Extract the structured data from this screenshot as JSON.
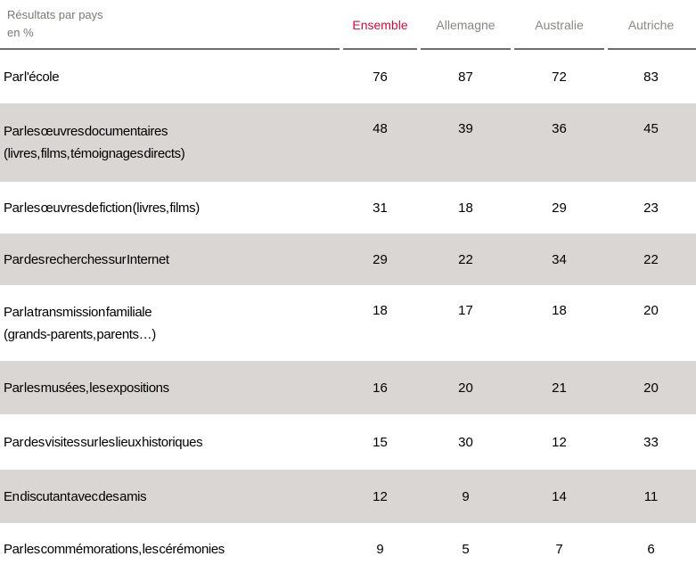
{
  "title": {
    "line1": "Résultats par pays",
    "line2": "en %"
  },
  "table": {
    "rows": [
      {
        "label": "Par l'école"
      },
      {
        "label": "Par les œuvres documentaires",
        "sublabel": "(livres, films, témoignages  directs)"
      },
      {
        "label": "Par les œuvres de fiction (livres, films)"
      },
      {
        "label": "Par des recherches sur Internet"
      },
      {
        "label": "Par la transmission familiale",
        "sublabel": "(grands-parents, parents…)"
      },
      {
        "label": "Par les musées, les expositions"
      },
      {
        "label": "Par des visites sur les lieux historiques"
      },
      {
        "label": "En discutant avec des amis"
      },
      {
        "label": "Par les commémorations, les cérémonies"
      }
    ]
  },
  "chart_data": {
    "type": "table",
    "title": "Résultats par pays en %",
    "columns": [
      "Ensemble",
      "Allemagne",
      "Australie",
      "Autriche"
    ],
    "highlight_column": "Ensemble",
    "row_labels": [
      "Par l'école",
      "Par les œuvres documentaires (livres, films, témoignages directs)",
      "Par les œuvres de fiction (livres, films)",
      "Par des recherches sur Internet",
      "Par la transmission familiale (grands-parents, parents…)",
      "Par les musées, les expositions",
      "Par des visites sur les lieux historiques",
      "En discutant avec des amis",
      "Par les commémorations, les cérémonies"
    ],
    "values": [
      [
        76,
        87,
        72,
        83
      ],
      [
        48,
        39,
        36,
        45
      ],
      [
        31,
        18,
        29,
        23
      ],
      [
        29,
        22,
        34,
        22
      ],
      [
        18,
        17,
        18,
        20
      ],
      [
        16,
        20,
        21,
        20
      ],
      [
        15,
        30,
        12,
        33
      ],
      [
        12,
        9,
        14,
        11
      ],
      [
        9,
        5,
        7,
        6
      ]
    ]
  },
  "colors": {
    "accent": "#c11240",
    "shaded_row": "#d9d6d4",
    "rule": "#6e6e6e",
    "title_text": "#7d7874",
    "header_text": "#8b8785"
  }
}
